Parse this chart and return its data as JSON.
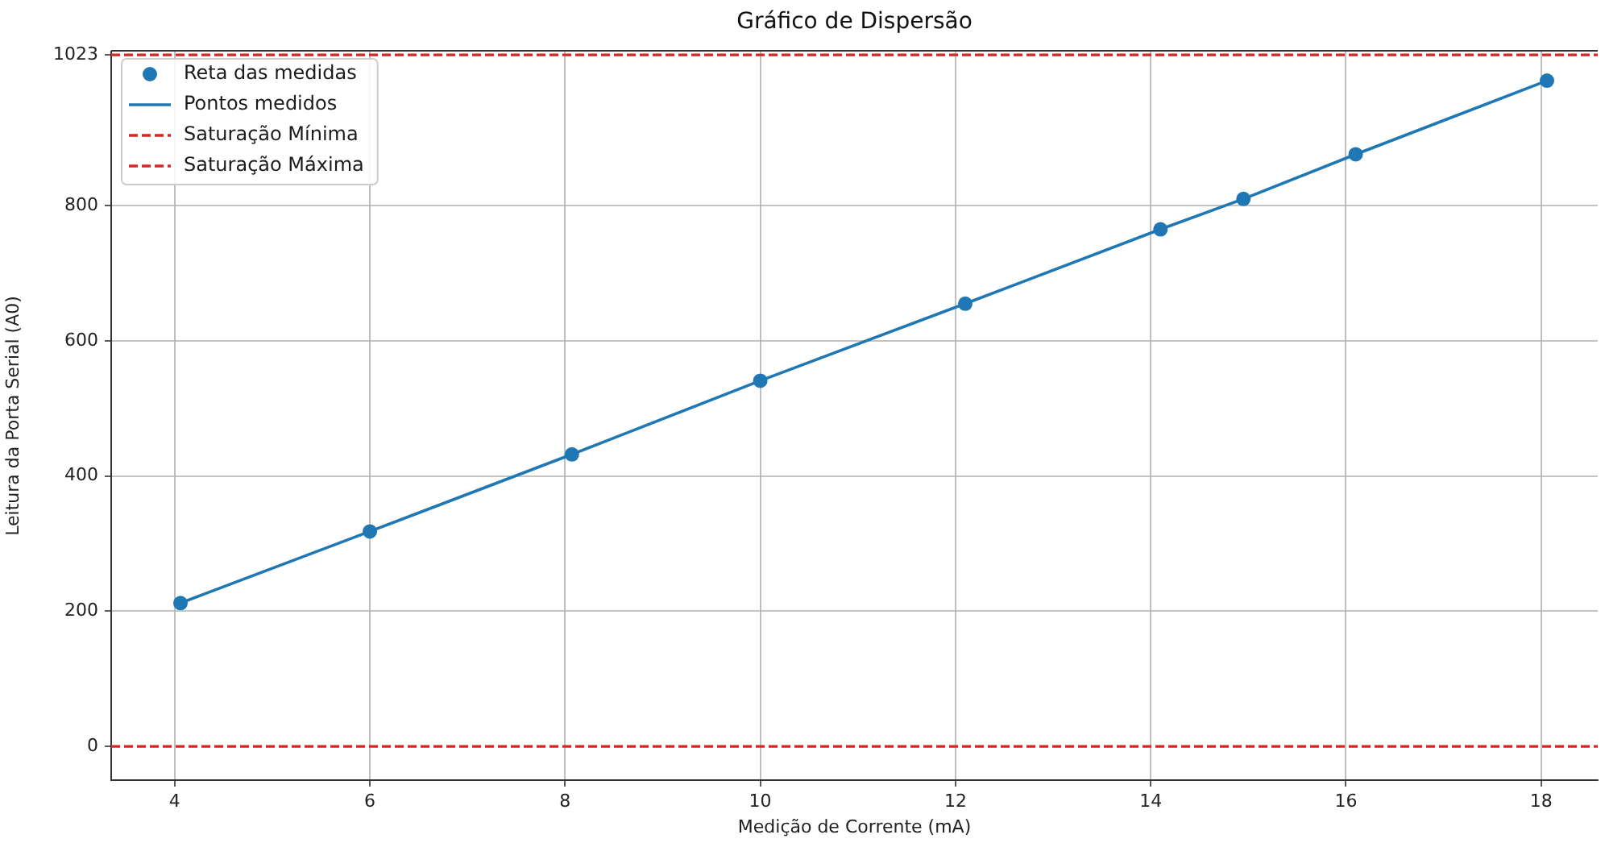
{
  "chart_data": {
    "type": "scatter",
    "title": "Gráfico de Dispersão",
    "xlabel": "Medição de Corrente (mA)",
    "ylabel": "Leitura da Porta Serial (A0)",
    "x": [
      4.06,
      6.0,
      8.07,
      10.0,
      12.1,
      14.1,
      14.95,
      16.1,
      18.06
    ],
    "series": [
      {
        "name": "Reta das medidas",
        "color": "#1f77b4",
        "marker": "circle",
        "values": [
          212,
          318,
          432,
          541,
          655,
          765,
          810,
          876,
          985
        ]
      },
      {
        "name": "Pontos medidos",
        "type": "line",
        "color": "#1f77b4",
        "marker": "none",
        "line_style": "solid",
        "values": [
          212,
          318,
          432,
          541,
          655,
          765,
          810,
          876,
          985
        ]
      }
    ],
    "ref_lines": [
      {
        "axis": "y",
        "value": 0,
        "label": "Saturação Mínima",
        "color": "#d62728",
        "line_style": "dashed"
      },
      {
        "axis": "y",
        "value": 1023,
        "label": "Saturação Máxima",
        "color": "#d62728",
        "line_style": "dashed"
      }
    ],
    "xlim": [
      3.35,
      18.58
    ],
    "ylim": [
      -50,
      1028
    ],
    "xticks": [
      4,
      6,
      8,
      10,
      12,
      14,
      16,
      18
    ],
    "yticks": [
      0,
      200,
      400,
      600,
      800,
      1023
    ],
    "grid": true,
    "legend": "top left"
  }
}
